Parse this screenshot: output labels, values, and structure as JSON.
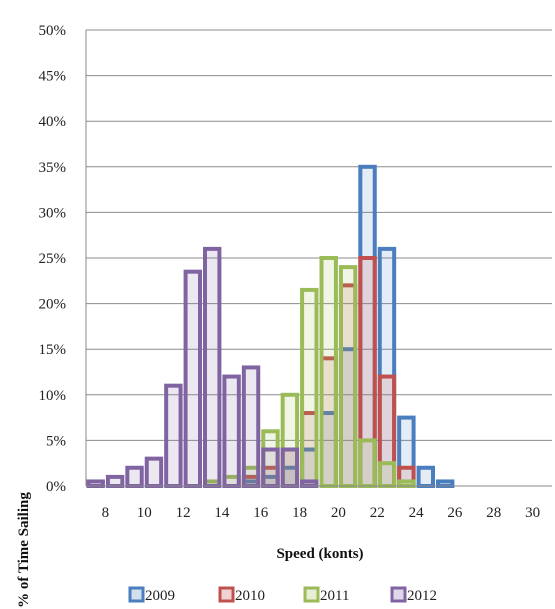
{
  "chart_data": {
    "type": "bar",
    "title": "",
    "xlabel": "Speed (konts)",
    "ylabel": "% of Time Sailing",
    "x_ticks": [
      "8",
      "10",
      "12",
      "14",
      "16",
      "18",
      "20",
      "22",
      "24",
      "26",
      "28",
      "30"
    ],
    "y_ticks": [
      "0%",
      "5%",
      "10%",
      "15%",
      "20%",
      "25%",
      "30%",
      "35%",
      "40%",
      "45%",
      "50%"
    ],
    "xlim": [
      7,
      31
    ],
    "ylim": [
      0,
      50
    ],
    "bin_width": 1,
    "grid": true,
    "legend_position": "bottom",
    "x": [
      7,
      8,
      9,
      10,
      11,
      12,
      13,
      14,
      15,
      16,
      17,
      18,
      19,
      20,
      21,
      22,
      23,
      24,
      25,
      26
    ],
    "series": [
      {
        "name": "2009",
        "color": "#4a7ebf",
        "values": [
          0,
          0,
          0,
          0,
          0,
          0,
          0,
          0,
          0.5,
          1,
          2,
          4,
          8,
          15,
          35,
          26,
          7.5,
          2,
          0.5,
          0
        ]
      },
      {
        "name": "2010",
        "color": "#c0504d",
        "values": [
          0,
          0,
          0,
          0,
          0,
          0,
          0,
          0,
          1,
          2,
          4,
          8,
          14,
          22,
          25,
          12,
          2,
          0,
          0,
          0
        ]
      },
      {
        "name": "2011",
        "color": "#9bbb59",
        "values": [
          0,
          0,
          0,
          0,
          0,
          0,
          0.5,
          1,
          2,
          6,
          10,
          21.5,
          25,
          24,
          5,
          2.5,
          0.5,
          0,
          0,
          0
        ]
      },
      {
        "name": "2012",
        "color": "#8064a2",
        "values": [
          0.5,
          1,
          2,
          3,
          11,
          23.5,
          26,
          12,
          13,
          4,
          4,
          0.5,
          0,
          0,
          0,
          0,
          0,
          0,
          0,
          0
        ]
      }
    ]
  }
}
